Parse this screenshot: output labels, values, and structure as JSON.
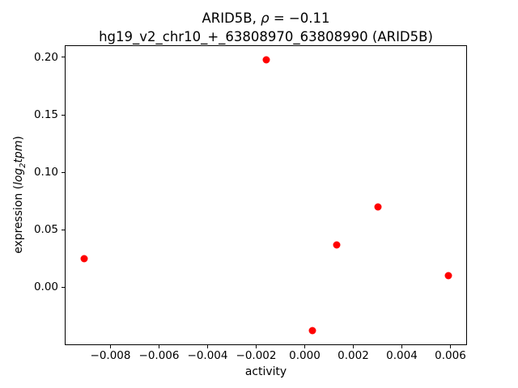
{
  "figure": {
    "title_line1_prefix": "ARID5B, ",
    "title_rho": "ρ",
    "title_line1_suffix": " = −0.11",
    "title_line2": "hg19_v2_chr10_+_63808970_63808990 (ARID5B)"
  },
  "chart_data": {
    "type": "scatter",
    "title": "ARID5B, ρ = −0.11",
    "subtitle": "hg19_v2_chr10_+_63808970_63808990 (ARID5B)",
    "xlabel": "activity",
    "ylabel": "expression (log2tpm)",
    "ylabel_parts": {
      "prefix": "expression (",
      "log": "log",
      "sub": "2",
      "unit": "tpm",
      "suffix": ")"
    },
    "marker_color": "#ff0000",
    "grid": false,
    "legend": false,
    "xlim": [
      -0.00985,
      0.00665
    ],
    "ylim": [
      -0.0497,
      0.2098
    ],
    "x_ticks": {
      "values": [
        -0.008,
        -0.006,
        -0.004,
        -0.002,
        0.0,
        0.002,
        0.004,
        0.006
      ],
      "labels": [
        "−0.008",
        "−0.006",
        "−0.004",
        "−0.002",
        "0.000",
        "0.002",
        "0.004",
        "0.006"
      ]
    },
    "y_ticks": {
      "values": [
        0.0,
        0.05,
        0.1,
        0.15,
        0.2
      ],
      "labels": [
        "0.00",
        "0.05",
        "0.10",
        "0.15",
        "0.20"
      ]
    },
    "points": [
      {
        "x": -0.0091,
        "y": 0.025
      },
      {
        "x": -0.0016,
        "y": 0.198
      },
      {
        "x": 0.0003,
        "y": -0.038
      },
      {
        "x": 0.0013,
        "y": 0.037
      },
      {
        "x": 0.003,
        "y": 0.07
      },
      {
        "x": 0.0059,
        "y": 0.01
      }
    ]
  }
}
